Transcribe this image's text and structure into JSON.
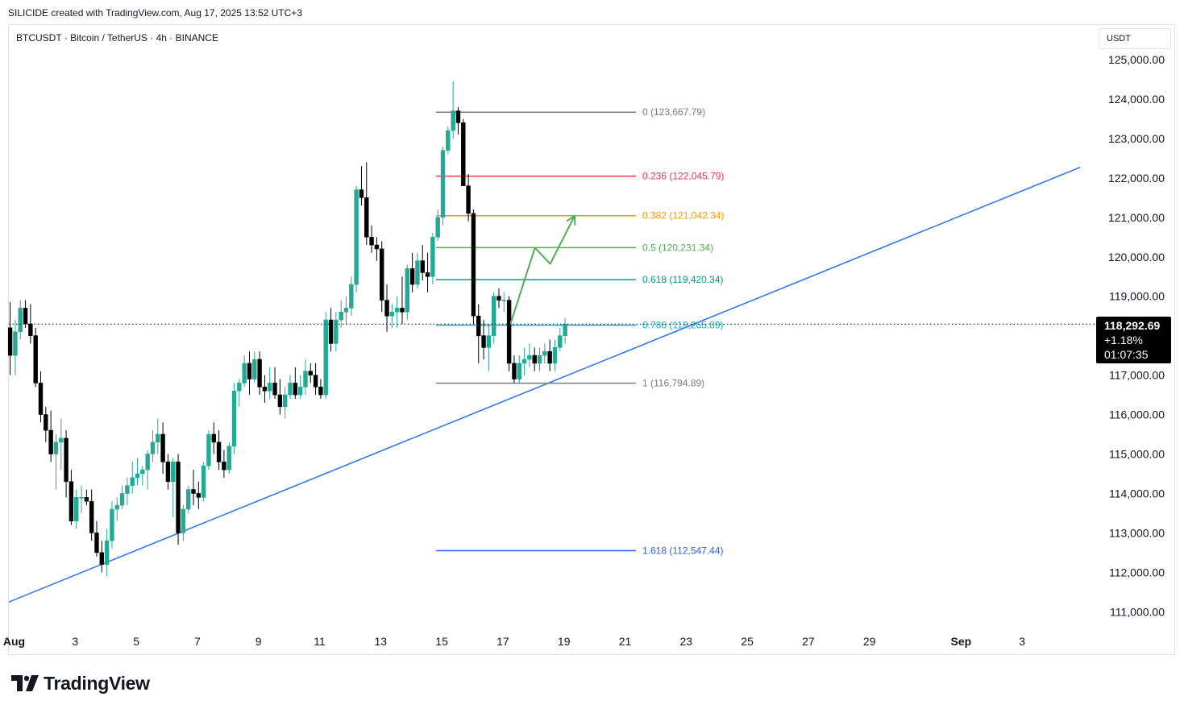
{
  "header": {
    "credit": "SILICIDE created with TradingView.com, Aug 17, 2025 13:52 UTC+3",
    "symbol_line": "BTCUSDT · Bitcoin / TetherUS · 4h · BINANCE"
  },
  "price_axis": {
    "unit_label": "USDT"
  },
  "last_price": {
    "price": "118,292.69",
    "change": "+1.18%",
    "countdown": "01:07:35",
    "value": 118292.69
  },
  "footer": {
    "logo_text": "TradingView"
  },
  "colors": {
    "bull": "#26a69a",
    "bull_body": "#22ab94",
    "bear": "#000000",
    "trend": "#3179f5",
    "projection": "#4caf50"
  },
  "chart_data": {
    "type": "candlestick",
    "ylim": [
      110700,
      125200
    ],
    "y_ticks": [
      {
        "value": 111000,
        "label": "111,000.00"
      },
      {
        "value": 112000,
        "label": "112,000.00"
      },
      {
        "value": 113000,
        "label": "113,000.00"
      },
      {
        "value": 114000,
        "label": "114,000.00"
      },
      {
        "value": 115000,
        "label": "115,000.00"
      },
      {
        "value": 116000,
        "label": "116,000.00"
      },
      {
        "value": 117000,
        "label": "117,000.00"
      },
      {
        "value": 118000,
        "label": "118,000.00"
      },
      {
        "value": 119000,
        "label": "119,000.00"
      },
      {
        "value": 120000,
        "label": "120,000.00"
      },
      {
        "value": 121000,
        "label": "121,000.00"
      },
      {
        "value": 122000,
        "label": "122,000.00"
      },
      {
        "value": 123000,
        "label": "123,000.00"
      },
      {
        "value": 124000,
        "label": "124,000.00"
      },
      {
        "value": 125000,
        "label": "125,000.00"
      }
    ],
    "x_ticks": [
      {
        "day": 1,
        "label": "Aug",
        "bold": true
      },
      {
        "day": 3,
        "label": "3"
      },
      {
        "day": 5,
        "label": "5"
      },
      {
        "day": 7,
        "label": "7"
      },
      {
        "day": 9,
        "label": "9"
      },
      {
        "day": 11,
        "label": "11"
      },
      {
        "day": 13,
        "label": "13"
      },
      {
        "day": 15,
        "label": "15"
      },
      {
        "day": 17,
        "label": "17"
      },
      {
        "day": 19,
        "label": "19"
      },
      {
        "day": 21,
        "label": "21"
      },
      {
        "day": 23,
        "label": "23"
      },
      {
        "day": 25,
        "label": "25"
      },
      {
        "day": 27,
        "label": "27"
      },
      {
        "day": 29,
        "label": "29"
      },
      {
        "day": 32,
        "label": "Sep",
        "bold": true
      },
      {
        "day": 34,
        "label": "3"
      }
    ],
    "candles": [
      [
        118200,
        118850,
        117000,
        117500
      ],
      [
        117500,
        118400,
        117000,
        118100
      ],
      [
        118100,
        118900,
        117900,
        118700
      ],
      [
        118700,
        118900,
        118200,
        118300
      ],
      [
        118300,
        118800,
        117800,
        118000
      ],
      [
        118000,
        118200,
        116700,
        116800
      ],
      [
        116800,
        117100,
        115800,
        116000
      ],
      [
        116000,
        116200,
        115300,
        115600
      ],
      [
        115600,
        116100,
        114800,
        115000
      ],
      [
        115000,
        115500,
        114100,
        115300
      ],
      [
        115300,
        115900,
        114600,
        115400
      ],
      [
        115400,
        115600,
        113900,
        114300
      ],
      [
        114300,
        114600,
        113200,
        113300
      ],
      [
        113300,
        114100,
        113100,
        113900
      ],
      [
        113900,
        114200,
        113500,
        113900
      ],
      [
        113900,
        114100,
        113700,
        113800
      ],
      [
        113800,
        114100,
        112800,
        113000
      ],
      [
        113000,
        113300,
        112400,
        112500
      ],
      [
        112500,
        112800,
        112000,
        112200
      ],
      [
        112200,
        113100,
        111900,
        112800
      ],
      [
        112800,
        113800,
        112600,
        113600
      ],
      [
        113600,
        113900,
        113300,
        113700
      ],
      [
        113700,
        114200,
        113600,
        114000
      ],
      [
        114000,
        114400,
        113700,
        114200
      ],
      [
        114200,
        114800,
        114000,
        114400
      ],
      [
        114400,
        114900,
        114200,
        114500
      ],
      [
        114500,
        114700,
        114200,
        114600
      ],
      [
        114600,
        115100,
        114100,
        115000
      ],
      [
        115000,
        115600,
        114800,
        115300
      ],
      [
        115300,
        115900,
        115000,
        115500
      ],
      [
        115500,
        115800,
        114500,
        114800
      ],
      [
        114800,
        115000,
        114100,
        114300
      ],
      [
        114300,
        114900,
        113400,
        114800
      ],
      [
        114800,
        115000,
        112700,
        113000
      ],
      [
        113000,
        113700,
        112800,
        113600
      ],
      [
        113600,
        114200,
        113500,
        114100
      ],
      [
        114100,
        114600,
        113700,
        114000
      ],
      [
        114000,
        114300,
        113600,
        113900
      ],
      [
        113900,
        114800,
        113800,
        114700
      ],
      [
        114700,
        115600,
        114600,
        115500
      ],
      [
        115500,
        115800,
        115000,
        115300
      ],
      [
        115300,
        115600,
        114600,
        114800
      ],
      [
        114800,
        115100,
        114400,
        114600
      ],
      [
        114600,
        115300,
        114500,
        115200
      ],
      [
        115200,
        116800,
        115000,
        116600
      ],
      [
        116600,
        116900,
        116200,
        116800
      ],
      [
        116800,
        117500,
        116700,
        117300
      ],
      [
        117300,
        117600,
        116500,
        116900
      ],
      [
        116900,
        117600,
        116800,
        117400
      ],
      [
        117400,
        117600,
        116500,
        116700
      ],
      [
        116700,
        117000,
        116300,
        116600
      ],
      [
        116600,
        117200,
        116400,
        116800
      ],
      [
        116800,
        117200,
        116400,
        116500
      ],
      [
        116500,
        116900,
        116000,
        116200
      ],
      [
        116200,
        116700,
        115900,
        116500
      ],
      [
        116500,
        117000,
        116400,
        116800
      ],
      [
        116800,
        117200,
        116400,
        116500
      ],
      [
        116500,
        117000,
        116400,
        116700
      ],
      [
        116700,
        117400,
        116500,
        117100
      ],
      [
        117100,
        117300,
        116800,
        117000
      ],
      [
        117000,
        117300,
        116500,
        116700
      ],
      [
        116700,
        116900,
        116400,
        116500
      ],
      [
        116500,
        118600,
        116400,
        118400
      ],
      [
        118400,
        118700,
        117600,
        117800
      ],
      [
        117800,
        118600,
        117600,
        118400
      ],
      [
        118400,
        118900,
        118200,
        118600
      ],
      [
        118600,
        119000,
        118300,
        118700
      ],
      [
        118700,
        119500,
        118500,
        119300
      ],
      [
        119300,
        121800,
        119100,
        121700
      ],
      [
        121700,
        122300,
        121300,
        121500
      ],
      [
        121500,
        122400,
        120300,
        120500
      ],
      [
        120500,
        120800,
        120100,
        120300
      ],
      [
        120300,
        120500,
        119900,
        120200
      ],
      [
        120200,
        120400,
        118600,
        118900
      ],
      [
        118900,
        119300,
        118100,
        118500
      ],
      [
        118500,
        118800,
        118200,
        118600
      ],
      [
        118600,
        119000,
        118200,
        118700
      ],
      [
        118700,
        119500,
        118300,
        118600
      ],
      [
        118600,
        119800,
        118400,
        119700
      ],
      [
        119700,
        120100,
        119100,
        119300
      ],
      [
        119300,
        120100,
        119200,
        119900
      ],
      [
        119900,
        120300,
        119400,
        119600
      ],
      [
        119600,
        120100,
        119100,
        119500
      ],
      [
        119500,
        120600,
        119300,
        120500
      ],
      [
        120500,
        121200,
        120400,
        121000
      ],
      [
        121000,
        122800,
        120800,
        122700
      ],
      [
        122700,
        123300,
        122600,
        123200
      ],
      [
        123200,
        124450,
        123000,
        123700
      ],
      [
        123700,
        123800,
        123100,
        123400
      ],
      [
        123400,
        123500,
        121800,
        121800
      ],
      [
        121800,
        122100,
        120900,
        121100
      ],
      [
        121100,
        121200,
        118300,
        118500
      ],
      [
        118500,
        118800,
        117300,
        118000
      ],
      [
        118000,
        118400,
        117400,
        117700
      ],
      [
        117700,
        118300,
        117100,
        118000
      ],
      [
        118000,
        119100,
        117800,
        119000
      ],
      [
        119000,
        119200,
        118700,
        118900
      ],
      [
        118900,
        119100,
        118600,
        118900
      ],
      [
        118900,
        119000,
        117100,
        117300
      ],
      [
        117300,
        117500,
        116800,
        116900
      ],
      [
        116900,
        117500,
        116800,
        117300
      ],
      [
        117300,
        117700,
        117000,
        117400
      ],
      [
        117400,
        117800,
        117200,
        117500
      ],
      [
        117500,
        117700,
        117100,
        117300
      ],
      [
        117300,
        117700,
        117100,
        117500
      ],
      [
        117500,
        117800,
        117300,
        117600
      ],
      [
        117600,
        117900,
        117100,
        117300
      ],
      [
        117300,
        117900,
        117100,
        117700
      ],
      [
        117700,
        118200,
        117600,
        118000
      ],
      [
        118000,
        118450,
        117800,
        118293
      ]
    ],
    "fib_levels": [
      {
        "ratio": "0",
        "price": 123667.79,
        "label": "0 (123,667.79)",
        "color": "#787b86"
      },
      {
        "ratio": "0.236",
        "price": 122045.79,
        "label": "0.236 (122,045.79)",
        "color": "#f23645"
      },
      {
        "ratio": "0.382",
        "price": 121042.34,
        "label": "0.382 (121,042.34)",
        "color": "#ff9800"
      },
      {
        "ratio": "0.5",
        "price": 120231.34,
        "label": "0.5 (120,231.34)",
        "color": "#4caf50"
      },
      {
        "ratio": "0.618",
        "price": 119420.34,
        "label": "0.618 (119,420.34)",
        "color": "#089981"
      },
      {
        "ratio": "0.786",
        "price": 118265.89,
        "label": "0.786 (118,265.89)",
        "color": "#00bcd4"
      },
      {
        "ratio": "1",
        "price": 116794.89,
        "label": "1 (116,794.89)",
        "color": "#787b86"
      },
      {
        "ratio": "1.618",
        "price": 112547.44,
        "label": "1.618 (112,547.44)",
        "color": "#2962ff"
      }
    ],
    "trendline": [
      {
        "day": 0.0,
        "price": 110987
      },
      {
        "day": 35.9,
        "price": 122270
      }
    ],
    "projection_path": [
      {
        "day": 17.25,
        "price": 118300
      },
      {
        "day": 18.05,
        "price": 120230
      },
      {
        "day": 18.55,
        "price": 119820
      },
      {
        "day": 19.35,
        "price": 121042
      }
    ]
  }
}
